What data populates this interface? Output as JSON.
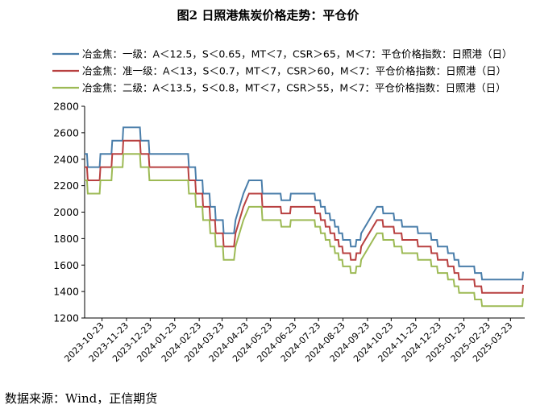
{
  "title": "图2  日照港焦炭价格走势：平仓价",
  "source": "数据来源：Wind，正信期货",
  "chart_data": {
    "type": "line",
    "ylim": [
      1200,
      2800
    ],
    "yticks": [
      1200,
      1400,
      1600,
      1800,
      2000,
      2200,
      2400,
      2600,
      2800
    ],
    "xlim": [
      "2023-10-01",
      "2025-04-10"
    ],
    "xticks": [
      "2023-10-23",
      "2023-11-23",
      "2023-12-23",
      "2024-01-23",
      "2024-02-23",
      "2024-03-23",
      "2024-04-23",
      "2024-05-23",
      "2024-06-23",
      "2024-07-23",
      "2024-08-23",
      "2024-09-23",
      "2024-10-23",
      "2024-11-23",
      "2024-12-23",
      "2025-01-23",
      "2025-02-23",
      "2025-03-23"
    ],
    "legend_position": "top",
    "grid": false,
    "series": [
      {
        "name": "冶金焦：一级：A＜12.5，S＜0.65，MT＜7，CSR＞65，M＜7：平仓价格指数：日照港（日）",
        "color": "#4a7eaa",
        "points": [
          [
            "2023-10-01",
            2440
          ],
          [
            "2023-10-04",
            2440
          ],
          [
            "2023-10-05",
            2340
          ],
          [
            "2023-10-20",
            2340
          ],
          [
            "2023-10-21",
            2440
          ],
          [
            "2023-11-04",
            2440
          ],
          [
            "2023-11-05",
            2540
          ],
          [
            "2023-11-18",
            2540
          ],
          [
            "2023-11-19",
            2640
          ],
          [
            "2023-12-10",
            2640
          ],
          [
            "2023-12-11",
            2540
          ],
          [
            "2023-12-21",
            2540
          ],
          [
            "2023-12-22",
            2440
          ],
          [
            "2024-02-09",
            2440
          ],
          [
            "2024-02-10",
            2340
          ],
          [
            "2024-02-18",
            2340
          ],
          [
            "2024-02-19",
            2240
          ],
          [
            "2024-02-27",
            2240
          ],
          [
            "2024-02-28",
            2140
          ],
          [
            "2024-03-07",
            2140
          ],
          [
            "2024-03-08",
            2040
          ],
          [
            "2024-03-14",
            2040
          ],
          [
            "2024-03-15",
            1940
          ],
          [
            "2024-03-24",
            1940
          ],
          [
            "2024-03-25",
            1840
          ],
          [
            "2024-04-07",
            1840
          ],
          [
            "2024-04-09",
            1940
          ],
          [
            "2024-04-14",
            2040
          ],
          [
            "2024-04-19",
            2140
          ],
          [
            "2024-04-26",
            2240
          ],
          [
            "2024-05-12",
            2240
          ],
          [
            "2024-05-13",
            2140
          ],
          [
            "2024-06-05",
            2140
          ],
          [
            "2024-06-06",
            2090
          ],
          [
            "2024-06-17",
            2090
          ],
          [
            "2024-06-18",
            2140
          ],
          [
            "2024-07-18",
            2140
          ],
          [
            "2024-07-19",
            2090
          ],
          [
            "2024-07-25",
            2090
          ],
          [
            "2024-07-26",
            2040
          ],
          [
            "2024-07-31",
            2040
          ],
          [
            "2024-08-01",
            1990
          ],
          [
            "2024-08-06",
            1990
          ],
          [
            "2024-08-07",
            1940
          ],
          [
            "2024-08-12",
            1940
          ],
          [
            "2024-08-13",
            1890
          ],
          [
            "2024-08-17",
            1890
          ],
          [
            "2024-08-18",
            1840
          ],
          [
            "2024-08-22",
            1840
          ],
          [
            "2024-08-23",
            1790
          ],
          [
            "2024-09-01",
            1790
          ],
          [
            "2024-09-02",
            1740
          ],
          [
            "2024-09-08",
            1740
          ],
          [
            "2024-09-09",
            1790
          ],
          [
            "2024-09-14",
            1790
          ],
          [
            "2024-09-15",
            1840
          ],
          [
            "2024-09-20",
            1890
          ],
          [
            "2024-09-25",
            1940
          ],
          [
            "2024-09-30",
            1990
          ],
          [
            "2024-10-05",
            2040
          ],
          [
            "2024-10-12",
            2040
          ],
          [
            "2024-10-13",
            1990
          ],
          [
            "2024-10-26",
            1990
          ],
          [
            "2024-10-27",
            1940
          ],
          [
            "2024-11-05",
            1940
          ],
          [
            "2024-11-06",
            1890
          ],
          [
            "2024-11-25",
            1890
          ],
          [
            "2024-11-26",
            1840
          ],
          [
            "2024-12-12",
            1840
          ],
          [
            "2024-12-13",
            1790
          ],
          [
            "2024-12-20",
            1790
          ],
          [
            "2024-12-21",
            1740
          ],
          [
            "2025-01-02",
            1740
          ],
          [
            "2025-01-03",
            1690
          ],
          [
            "2025-01-10",
            1690
          ],
          [
            "2025-01-11",
            1640
          ],
          [
            "2025-01-16",
            1640
          ],
          [
            "2025-01-17",
            1590
          ],
          [
            "2025-02-05",
            1590
          ],
          [
            "2025-02-06",
            1540
          ],
          [
            "2025-02-14",
            1540
          ],
          [
            "2025-02-15",
            1490
          ],
          [
            "2025-04-07",
            1490
          ],
          [
            "2025-04-08",
            1550
          ]
        ]
      },
      {
        "name": "冶金焦：准一级：A＜13，S＜0.7，MT＜7，CSR＞60，M＜7：平仓价格指数：日照港（日）",
        "color": "#b84040",
        "points": [
          [
            "2023-10-01",
            2340
          ],
          [
            "2023-10-04",
            2340
          ],
          [
            "2023-10-05",
            2240
          ],
          [
            "2023-10-20",
            2240
          ],
          [
            "2023-10-21",
            2340
          ],
          [
            "2023-11-04",
            2340
          ],
          [
            "2023-11-05",
            2440
          ],
          [
            "2023-11-18",
            2440
          ],
          [
            "2023-11-19",
            2540
          ],
          [
            "2023-12-10",
            2540
          ],
          [
            "2023-12-11",
            2440
          ],
          [
            "2023-12-21",
            2440
          ],
          [
            "2023-12-22",
            2340
          ],
          [
            "2024-02-09",
            2340
          ],
          [
            "2024-02-10",
            2240
          ],
          [
            "2024-02-18",
            2240
          ],
          [
            "2024-02-19",
            2140
          ],
          [
            "2024-02-27",
            2140
          ],
          [
            "2024-02-28",
            2040
          ],
          [
            "2024-03-07",
            2040
          ],
          [
            "2024-03-08",
            1940
          ],
          [
            "2024-03-14",
            1940
          ],
          [
            "2024-03-15",
            1840
          ],
          [
            "2024-03-24",
            1840
          ],
          [
            "2024-03-25",
            1740
          ],
          [
            "2024-04-07",
            1740
          ],
          [
            "2024-04-09",
            1840
          ],
          [
            "2024-04-14",
            1940
          ],
          [
            "2024-04-19",
            2040
          ],
          [
            "2024-04-26",
            2140
          ],
          [
            "2024-05-12",
            2140
          ],
          [
            "2024-05-13",
            2040
          ],
          [
            "2024-06-05",
            2040
          ],
          [
            "2024-06-06",
            1990
          ],
          [
            "2024-06-17",
            1990
          ],
          [
            "2024-06-18",
            2040
          ],
          [
            "2024-07-18",
            2040
          ],
          [
            "2024-07-19",
            1990
          ],
          [
            "2024-07-25",
            1990
          ],
          [
            "2024-07-26",
            1940
          ],
          [
            "2024-07-31",
            1940
          ],
          [
            "2024-08-01",
            1890
          ],
          [
            "2024-08-06",
            1890
          ],
          [
            "2024-08-07",
            1840
          ],
          [
            "2024-08-12",
            1840
          ],
          [
            "2024-08-13",
            1790
          ],
          [
            "2024-08-17",
            1790
          ],
          [
            "2024-08-18",
            1740
          ],
          [
            "2024-08-22",
            1740
          ],
          [
            "2024-08-23",
            1690
          ],
          [
            "2024-09-01",
            1690
          ],
          [
            "2024-09-02",
            1640
          ],
          [
            "2024-09-08",
            1640
          ],
          [
            "2024-09-09",
            1690
          ],
          [
            "2024-09-14",
            1690
          ],
          [
            "2024-09-15",
            1740
          ],
          [
            "2024-09-20",
            1790
          ],
          [
            "2024-09-25",
            1840
          ],
          [
            "2024-09-30",
            1890
          ],
          [
            "2024-10-05",
            1940
          ],
          [
            "2024-10-12",
            1940
          ],
          [
            "2024-10-13",
            1890
          ],
          [
            "2024-10-26",
            1890
          ],
          [
            "2024-10-27",
            1840
          ],
          [
            "2024-11-05",
            1840
          ],
          [
            "2024-11-06",
            1790
          ],
          [
            "2024-11-25",
            1790
          ],
          [
            "2024-11-26",
            1740
          ],
          [
            "2024-12-12",
            1740
          ],
          [
            "2024-12-13",
            1690
          ],
          [
            "2024-12-20",
            1690
          ],
          [
            "2024-12-21",
            1640
          ],
          [
            "2025-01-02",
            1640
          ],
          [
            "2025-01-03",
            1590
          ],
          [
            "2025-01-10",
            1590
          ],
          [
            "2025-01-11",
            1540
          ],
          [
            "2025-01-16",
            1540
          ],
          [
            "2025-01-17",
            1490
          ],
          [
            "2025-02-05",
            1490
          ],
          [
            "2025-02-06",
            1440
          ],
          [
            "2025-02-14",
            1440
          ],
          [
            "2025-02-15",
            1390
          ],
          [
            "2025-04-07",
            1390
          ],
          [
            "2025-04-08",
            1450
          ]
        ]
      },
      {
        "name": "冶金焦：二级：A＜13.5，S＜0.8，MT＜7，CSR＞55，M＜7：平仓价格指数：日照港（日）",
        "color": "#9dba55",
        "points": [
          [
            "2023-10-01",
            2240
          ],
          [
            "2023-10-04",
            2240
          ],
          [
            "2023-10-05",
            2140
          ],
          [
            "2023-10-20",
            2140
          ],
          [
            "2023-10-21",
            2240
          ],
          [
            "2023-11-04",
            2240
          ],
          [
            "2023-11-05",
            2340
          ],
          [
            "2023-11-18",
            2340
          ],
          [
            "2023-11-19",
            2440
          ],
          [
            "2023-12-10",
            2440
          ],
          [
            "2023-12-11",
            2340
          ],
          [
            "2023-12-21",
            2340
          ],
          [
            "2023-12-22",
            2240
          ],
          [
            "2024-02-09",
            2240
          ],
          [
            "2024-02-10",
            2140
          ],
          [
            "2024-02-18",
            2140
          ],
          [
            "2024-02-19",
            2040
          ],
          [
            "2024-02-27",
            2040
          ],
          [
            "2024-02-28",
            1940
          ],
          [
            "2024-03-07",
            1940
          ],
          [
            "2024-03-08",
            1840
          ],
          [
            "2024-03-14",
            1840
          ],
          [
            "2024-03-15",
            1740
          ],
          [
            "2024-03-24",
            1740
          ],
          [
            "2024-03-25",
            1640
          ],
          [
            "2024-04-07",
            1640
          ],
          [
            "2024-04-09",
            1740
          ],
          [
            "2024-04-14",
            1840
          ],
          [
            "2024-04-19",
            1940
          ],
          [
            "2024-04-26",
            2040
          ],
          [
            "2024-05-12",
            2040
          ],
          [
            "2024-05-13",
            1940
          ],
          [
            "2024-06-05",
            1940
          ],
          [
            "2024-06-06",
            1890
          ],
          [
            "2024-06-17",
            1890
          ],
          [
            "2024-06-18",
            1940
          ],
          [
            "2024-07-18",
            1940
          ],
          [
            "2024-07-19",
            1890
          ],
          [
            "2024-07-25",
            1890
          ],
          [
            "2024-07-26",
            1840
          ],
          [
            "2024-07-31",
            1840
          ],
          [
            "2024-08-01",
            1790
          ],
          [
            "2024-08-06",
            1790
          ],
          [
            "2024-08-07",
            1740
          ],
          [
            "2024-08-12",
            1740
          ],
          [
            "2024-08-13",
            1690
          ],
          [
            "2024-08-17",
            1690
          ],
          [
            "2024-08-18",
            1640
          ],
          [
            "2024-08-22",
            1640
          ],
          [
            "2024-08-23",
            1590
          ],
          [
            "2024-09-01",
            1590
          ],
          [
            "2024-09-02",
            1540
          ],
          [
            "2024-09-08",
            1540
          ],
          [
            "2024-09-09",
            1590
          ],
          [
            "2024-09-14",
            1590
          ],
          [
            "2024-09-15",
            1640
          ],
          [
            "2024-09-20",
            1690
          ],
          [
            "2024-09-25",
            1740
          ],
          [
            "2024-09-30",
            1790
          ],
          [
            "2024-10-05",
            1840
          ],
          [
            "2024-10-12",
            1840
          ],
          [
            "2024-10-13",
            1790
          ],
          [
            "2024-10-26",
            1790
          ],
          [
            "2024-10-27",
            1740
          ],
          [
            "2024-11-05",
            1740
          ],
          [
            "2024-11-06",
            1690
          ],
          [
            "2024-11-25",
            1690
          ],
          [
            "2024-11-26",
            1640
          ],
          [
            "2024-12-12",
            1640
          ],
          [
            "2024-12-13",
            1590
          ],
          [
            "2024-12-20",
            1590
          ],
          [
            "2024-12-21",
            1540
          ],
          [
            "2025-01-02",
            1540
          ],
          [
            "2025-01-03",
            1490
          ],
          [
            "2025-01-10",
            1490
          ],
          [
            "2025-01-11",
            1440
          ],
          [
            "2025-01-16",
            1440
          ],
          [
            "2025-01-17",
            1390
          ],
          [
            "2025-02-05",
            1390
          ],
          [
            "2025-02-06",
            1340
          ],
          [
            "2025-02-14",
            1340
          ],
          [
            "2025-02-15",
            1290
          ],
          [
            "2025-04-07",
            1290
          ],
          [
            "2025-04-08",
            1350
          ]
        ]
      }
    ]
  }
}
